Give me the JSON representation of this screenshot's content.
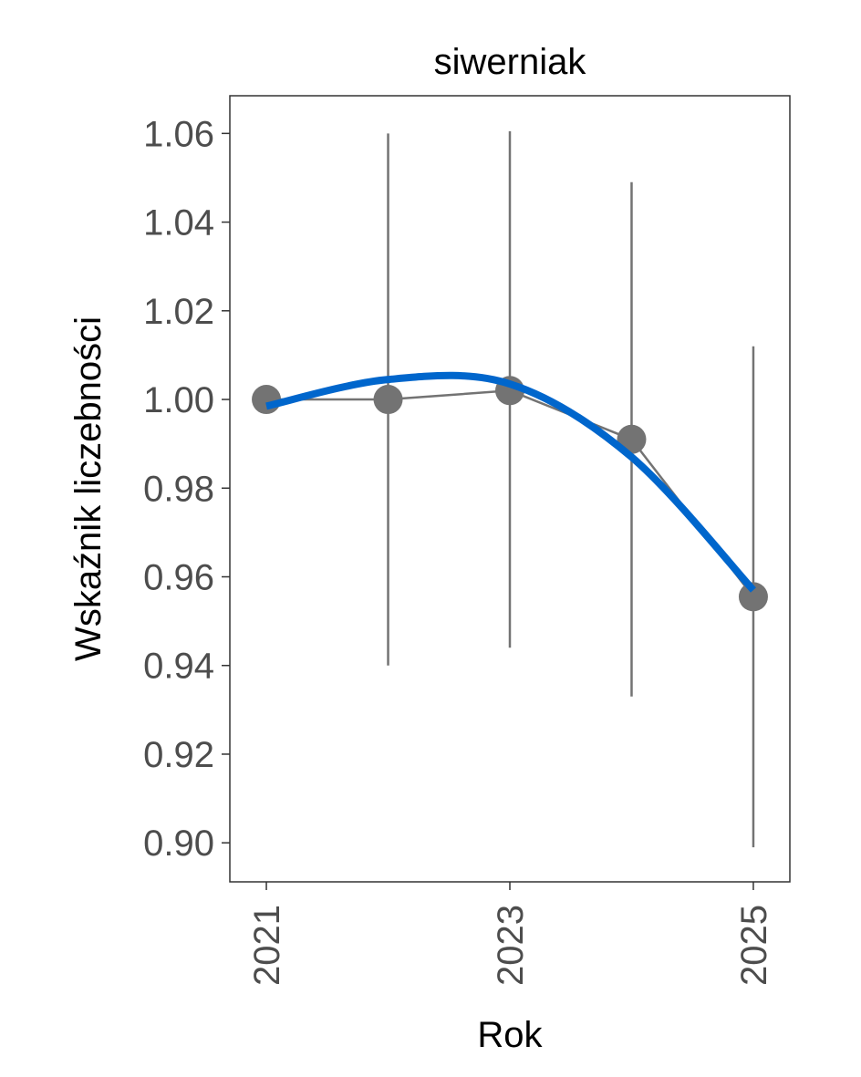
{
  "chart_data": {
    "type": "line",
    "title": "siwerniak",
    "xlabel": "Rok",
    "ylabel": "Wskaźnik liczebności",
    "xlim": [
      2020.7,
      2025.3
    ],
    "ylim": [
      0.8912,
      1.0685
    ],
    "x_ticks": [
      2021,
      2023,
      2025
    ],
    "x_tick_labels": [
      "2021",
      "2023",
      "2025"
    ],
    "y_ticks": [
      0.9,
      0.92,
      0.94,
      0.96,
      0.98,
      1.0,
      1.02,
      1.04,
      1.06
    ],
    "y_tick_labels": [
      "0.90",
      "0.92",
      "0.94",
      "0.96",
      "0.98",
      "1.00",
      "1.02",
      "1.04",
      "1.06"
    ],
    "grid": false,
    "series": [
      {
        "kind": "points-with-errorbars",
        "color": "#737373",
        "x": [
          2021,
          2022,
          2023,
          2024,
          2025
        ],
        "y": [
          1.0,
          1.0,
          1.002,
          0.991,
          0.9555
        ],
        "lower": [
          1.0,
          0.94,
          0.944,
          0.933,
          0.899
        ],
        "upper": [
          1.0,
          1.06,
          1.0605,
          1.049,
          1.012
        ]
      },
      {
        "kind": "trend",
        "color": "#0066cc",
        "x": [
          2021,
          2022,
          2023,
          2024,
          2025
        ],
        "y": [
          0.9985,
          1.0045,
          1.0035,
          0.987,
          0.957
        ]
      }
    ]
  }
}
